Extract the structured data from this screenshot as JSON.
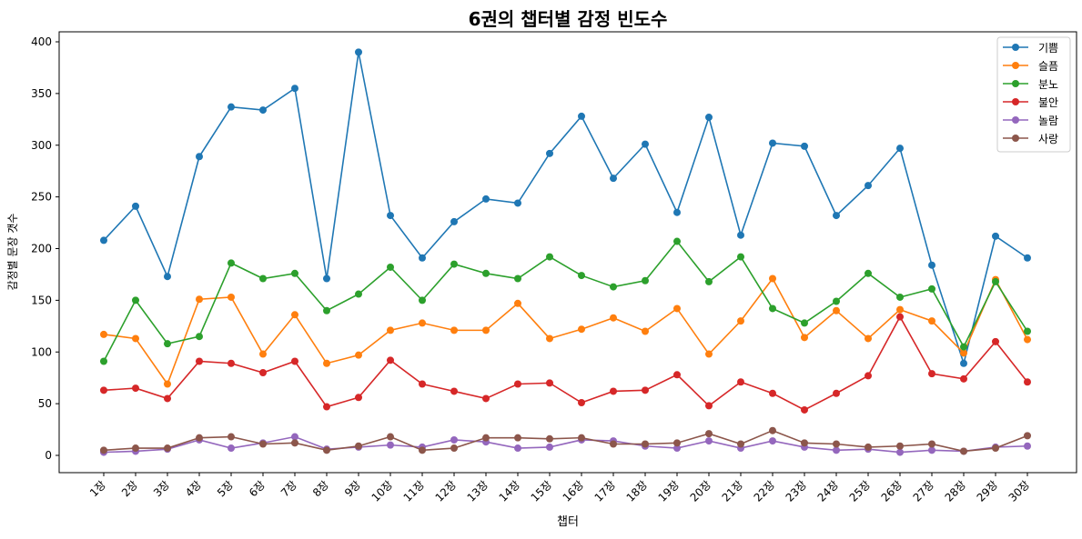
{
  "chart_data": {
    "type": "line",
    "title": "6권의 챕터별 감정 빈도수",
    "xlabel": "챕터",
    "ylabel": "감정별 문장 갯수",
    "ylim": [
      -15,
      410
    ],
    "yticks": [
      0,
      50,
      100,
      150,
      200,
      250,
      300,
      350,
      400
    ],
    "legend_position": "top-right",
    "grid": false,
    "categories": [
      "1장",
      "2장",
      "3장",
      "4장",
      "5장",
      "6장",
      "7장",
      "8장",
      "9장",
      "10장",
      "11장",
      "12장",
      "13장",
      "14장",
      "15장",
      "16장",
      "17장",
      "18장",
      "19장",
      "20장",
      "21장",
      "22장",
      "23장",
      "24장",
      "25장",
      "26장",
      "27장",
      "28장",
      "29장",
      "30장"
    ],
    "series": [
      {
        "name": "기쁨",
        "color": "#1f77b4",
        "values": [
          208,
          241,
          173,
          289,
          337,
          334,
          355,
          171,
          390,
          232,
          191,
          226,
          248,
          244,
          292,
          328,
          268,
          301,
          235,
          327,
          213,
          302,
          299,
          232,
          261,
          297,
          184,
          89,
          212,
          191
        ]
      },
      {
        "name": "슬픔",
        "color": "#ff7f0e",
        "values": [
          117,
          113,
          69,
          151,
          153,
          98,
          136,
          89,
          97,
          121,
          128,
          121,
          121,
          147,
          113,
          122,
          133,
          120,
          142,
          98,
          130,
          171,
          114,
          140,
          113,
          141,
          130,
          99,
          170,
          112
        ]
      },
      {
        "name": "분노",
        "color": "#2ca02c",
        "values": [
          91,
          150,
          108,
          115,
          186,
          171,
          176,
          140,
          156,
          182,
          150,
          185,
          176,
          171,
          192,
          174,
          163,
          169,
          207,
          168,
          192,
          142,
          128,
          149,
          176,
          153,
          161,
          105,
          168,
          120
        ]
      },
      {
        "name": "불안",
        "color": "#d62728",
        "values": [
          63,
          65,
          55,
          91,
          89,
          80,
          91,
          47,
          56,
          92,
          69,
          62,
          55,
          69,
          70,
          51,
          62,
          63,
          78,
          48,
          71,
          60,
          44,
          60,
          77,
          134,
          79,
          74,
          110,
          71
        ]
      },
      {
        "name": "놀람",
        "color": "#9467bd",
        "values": [
          3,
          4,
          6,
          15,
          7,
          12,
          18,
          6,
          8,
          10,
          8,
          15,
          13,
          7,
          8,
          15,
          14,
          9,
          7,
          14,
          7,
          14,
          8,
          5,
          6,
          3,
          5,
          4,
          8,
          9
        ]
      },
      {
        "name": "사랑",
        "color": "#8c564b",
        "values": [
          5,
          7,
          7,
          17,
          18,
          11,
          12,
          5,
          9,
          18,
          5,
          7,
          17,
          17,
          16,
          17,
          11,
          11,
          12,
          21,
          11,
          24,
          12,
          11,
          8,
          9,
          11,
          4,
          7,
          19
        ]
      }
    ]
  }
}
